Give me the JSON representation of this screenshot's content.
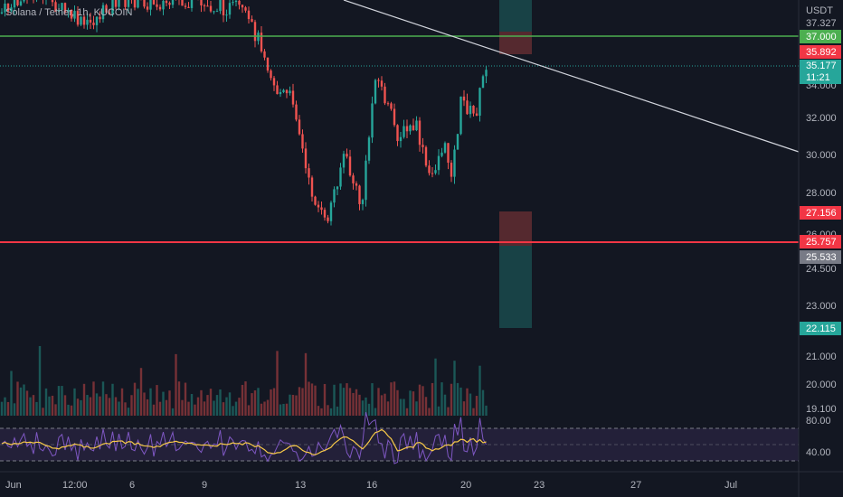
{
  "header": {
    "title": "Solana / Tether, 1h, KUCOIN"
  },
  "price_axis": {
    "currency": "USDT",
    "top": "37.327",
    "l34": "34.000",
    "l32": "32.000",
    "l30": "30.000",
    "l28": "28.000",
    "l26": "26.000",
    "l245": "24.500",
    "l23": "23.000",
    "l21": "21.000",
    "l20": "20.000",
    "l191": "19.100",
    "rsi80": "80.00",
    "rsi40": "40.00"
  },
  "tags": {
    "target_top": "37.000",
    "entry_top": "35.892",
    "last": "35.177",
    "countdown": "11:21",
    "stop": "27.156",
    "support": "25.757",
    "entry_low": "25.533",
    "target_low": "22.115"
  },
  "time_axis": [
    "Jun",
    "12:00",
    "6",
    "9",
    "13",
    "16",
    "20",
    "23",
    "27",
    "Jul"
  ]
}
